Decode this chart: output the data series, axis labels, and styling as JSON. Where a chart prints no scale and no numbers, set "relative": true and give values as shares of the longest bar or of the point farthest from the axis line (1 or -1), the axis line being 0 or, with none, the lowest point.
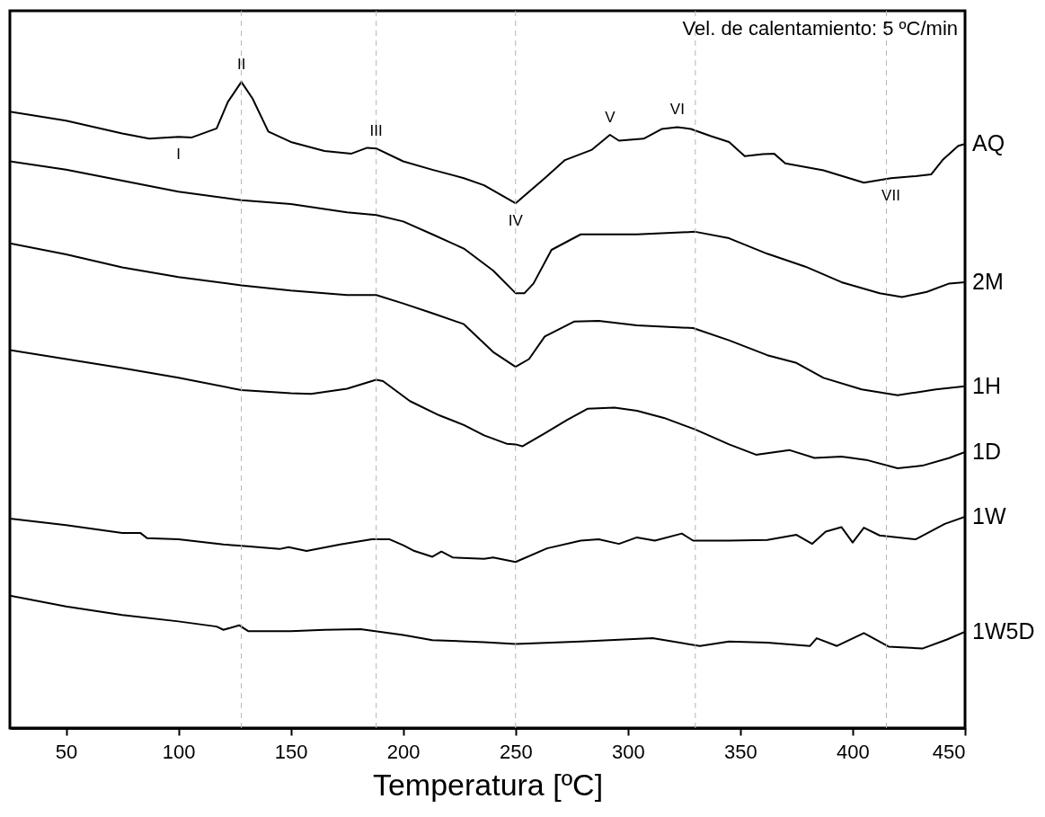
{
  "chart_data": {
    "type": "line",
    "relative": true,
    "xlabel": "Temperatura [ºC]",
    "xlim": [
      25,
      450
    ],
    "xticks": [
      50,
      100,
      150,
      200,
      250,
      300,
      350,
      400,
      450
    ],
    "grid": false,
    "line_style": "solid",
    "annotations": [
      "Vel. de calentamiento: 5 ºC/min",
      {
        "text": "I",
        "x": 100,
        "y": 0.915
      },
      {
        "text": "II",
        "x": 128,
        "y": 1.0
      },
      {
        "text": "III",
        "x": 188,
        "y": 0.897
      },
      {
        "text": "IV",
        "x": 250,
        "y": 0.812
      },
      {
        "text": "V",
        "x": 292,
        "y": 0.918
      },
      {
        "text": "VI",
        "x": 322,
        "y": 0.93
      },
      {
        "text": "VII",
        "x": 417,
        "y": 0.851
      }
    ],
    "ref_lines": [
      {
        "axis": "x",
        "value": 128,
        "color": "#b4b4b4",
        "line_style": "dashed"
      },
      {
        "axis": "x",
        "value": 188,
        "color": "#b4b4b4",
        "line_style": "dashed"
      },
      {
        "axis": "x",
        "value": 250,
        "color": "#b4b4b4",
        "line_style": "dashed"
      },
      {
        "axis": "x",
        "value": 330,
        "color": "#b4b4b4",
        "line_style": "dashed"
      },
      {
        "axis": "x",
        "value": 415,
        "color": "#b4b4b4",
        "line_style": "dashed"
      }
    ],
    "series": [
      {
        "name": "AQ",
        "color": "#000000",
        "x": [
          25,
          50,
          75,
          87,
          100,
          106,
          117,
          122,
          128,
          133,
          140,
          150,
          165,
          177,
          184,
          188,
          200,
          213,
          227,
          236,
          250,
          263,
          272,
          284,
          292,
          296,
          307,
          315,
          322,
          328,
          337,
          345,
          352,
          360,
          365,
          370,
          387,
          405,
          417,
          428,
          435,
          440,
          447,
          450
        ],
        "values": [
          0.954,
          0.94,
          0.92,
          0.912,
          0.915,
          0.914,
          0.928,
          0.969,
          1.0,
          0.974,
          0.923,
          0.907,
          0.893,
          0.889,
          0.898,
          0.897,
          0.877,
          0.864,
          0.851,
          0.84,
          0.812,
          0.851,
          0.879,
          0.895,
          0.918,
          0.909,
          0.912,
          0.927,
          0.93,
          0.927,
          0.916,
          0.907,
          0.885,
          0.888,
          0.889,
          0.874,
          0.863,
          0.844,
          0.851,
          0.854,
          0.857,
          0.879,
          0.901,
          0.904
        ]
      },
      {
        "name": "2M",
        "color": "#000000",
        "x": [
          25,
          50,
          75,
          100,
          128,
          150,
          175,
          188,
          200,
          213,
          227,
          240,
          250,
          254,
          258,
          266,
          279,
          304,
          330,
          345,
          362,
          379,
          395,
          412,
          422,
          433,
          443,
          450
        ],
        "values": [
          0.877,
          0.864,
          0.847,
          0.83,
          0.817,
          0.811,
          0.798,
          0.794,
          0.784,
          0.764,
          0.742,
          0.708,
          0.673,
          0.673,
          0.688,
          0.74,
          0.764,
          0.764,
          0.768,
          0.758,
          0.734,
          0.714,
          0.69,
          0.673,
          0.667,
          0.675,
          0.688,
          0.69
        ]
      },
      {
        "name": "1H",
        "color": "#000000",
        "x": [
          25,
          50,
          75,
          100,
          128,
          150,
          175,
          188,
          200,
          213,
          227,
          240,
          250,
          256,
          263,
          276,
          287,
          304,
          329,
          345,
          362,
          375,
          387,
          404,
          420,
          437,
          450
        ],
        "values": [
          0.75,
          0.733,
          0.713,
          0.698,
          0.685,
          0.677,
          0.67,
          0.67,
          0.657,
          0.642,
          0.625,
          0.582,
          0.559,
          0.571,
          0.606,
          0.629,
          0.63,
          0.623,
          0.619,
          0.6,
          0.577,
          0.565,
          0.542,
          0.524,
          0.515,
          0.524,
          0.529
        ]
      },
      {
        "name": "1D",
        "color": "#000000",
        "x": [
          25,
          50,
          75,
          100,
          128,
          150,
          159,
          175,
          188,
          191,
          203,
          216,
          227,
          236,
          246,
          250,
          253,
          263,
          273,
          282,
          294,
          304,
          316,
          330,
          345,
          357,
          372,
          383,
          395,
          406,
          420,
          431,
          443,
          450
        ],
        "values": [
          0.585,
          0.571,
          0.557,
          0.542,
          0.523,
          0.518,
          0.517,
          0.525,
          0.539,
          0.537,
          0.506,
          0.484,
          0.469,
          0.453,
          0.44,
          0.439,
          0.436,
          0.456,
          0.477,
          0.494,
          0.496,
          0.491,
          0.48,
          0.462,
          0.439,
          0.423,
          0.43,
          0.418,
          0.42,
          0.415,
          0.402,
          0.406,
          0.418,
          0.427
        ]
      },
      {
        "name": "1W",
        "color": "#000000",
        "x": [
          25,
          50,
          75,
          83,
          86,
          100,
          120,
          128,
          145,
          149,
          157,
          172,
          186,
          194,
          200,
          205,
          213,
          217,
          222,
          236,
          240,
          250,
          264,
          279,
          287,
          296,
          304,
          312,
          324,
          329,
          345,
          362,
          375,
          382,
          388,
          395,
          400,
          405,
          412,
          428,
          441,
          450
        ],
        "values": [
          0.324,
          0.314,
          0.302,
          0.302,
          0.294,
          0.292,
          0.284,
          0.282,
          0.277,
          0.28,
          0.274,
          0.284,
          0.292,
          0.292,
          0.283,
          0.274,
          0.265,
          0.273,
          0.264,
          0.262,
          0.264,
          0.257,
          0.278,
          0.29,
          0.292,
          0.285,
          0.295,
          0.29,
          0.301,
          0.29,
          0.29,
          0.291,
          0.299,
          0.285,
          0.304,
          0.311,
          0.287,
          0.31,
          0.298,
          0.292,
          0.316,
          0.327
        ]
      },
      {
        "name": "1W5D",
        "color": "#000000",
        "x": [
          25,
          50,
          75,
          100,
          117,
          120,
          127,
          131,
          150,
          165,
          181,
          200,
          213,
          236,
          250,
          279,
          311,
          332,
          345,
          362,
          381,
          384,
          393,
          405,
          416,
          431,
          442,
          450
        ],
        "values": [
          0.205,
          0.188,
          0.175,
          0.165,
          0.157,
          0.152,
          0.159,
          0.15,
          0.15,
          0.152,
          0.153,
          0.144,
          0.136,
          0.133,
          0.13,
          0.134,
          0.139,
          0.127,
          0.134,
          0.132,
          0.127,
          0.139,
          0.127,
          0.147,
          0.126,
          0.123,
          0.137,
          0.149
        ]
      }
    ]
  }
}
